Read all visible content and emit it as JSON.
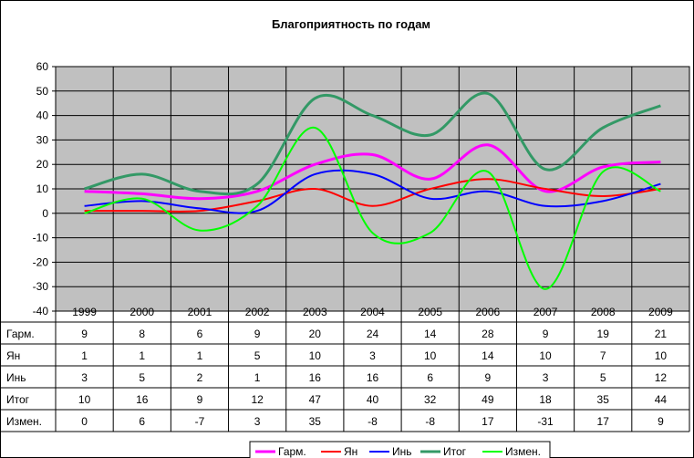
{
  "chart_data": {
    "type": "line",
    "title": "Благоприятность по годам",
    "xlabel": "",
    "ylabel": "",
    "ylim": [
      -40,
      60
    ],
    "yticks": [
      60,
      50,
      40,
      30,
      20,
      10,
      0,
      -10,
      -20,
      -30,
      -40
    ],
    "categories": [
      "1999",
      "2000",
      "2001",
      "2002",
      "2003",
      "2004",
      "2005",
      "2006",
      "2007",
      "2008",
      "2009"
    ],
    "grid": true,
    "legend_position": "bottom",
    "data_table": true,
    "smooth_lines": true,
    "series": [
      {
        "name": "Гарм.",
        "color": "#ff00ff",
        "values": [
          9,
          8,
          6,
          9,
          20,
          24,
          14,
          28,
          9,
          19,
          21
        ]
      },
      {
        "name": "Ян",
        "color": "#ff0000",
        "values": [
          1,
          1,
          1,
          5,
          10,
          3,
          10,
          14,
          10,
          7,
          10
        ]
      },
      {
        "name": "Инь",
        "color": "#0000ff",
        "values": [
          3,
          5,
          2,
          1,
          16,
          16,
          6,
          9,
          3,
          5,
          12
        ]
      },
      {
        "name": "Итог",
        "color": "#339966",
        "values": [
          10,
          16,
          9,
          12,
          47,
          40,
          32,
          49,
          18,
          35,
          44
        ]
      },
      {
        "name": "Измен.",
        "color": "#00ff00",
        "values": [
          0,
          6,
          -7,
          3,
          35,
          -8,
          -8,
          17,
          -31,
          17,
          9
        ]
      }
    ]
  }
}
